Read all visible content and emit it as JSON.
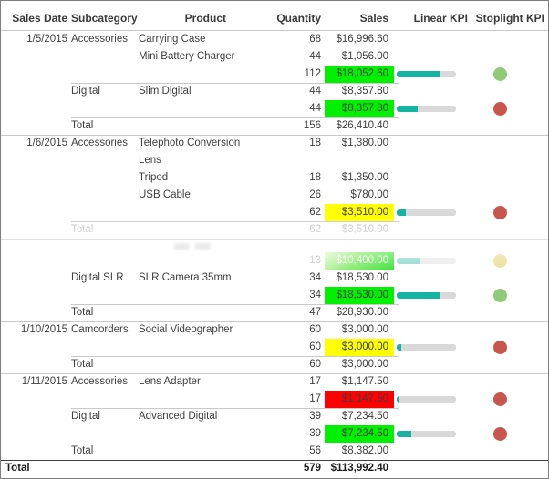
{
  "table": {
    "columns": [
      "Sales Date",
      "Subcategory",
      "Product",
      "Quantity",
      "Sales",
      "Linear KPI",
      "Stoplight KPI"
    ],
    "rows": [
      {
        "date": "1/5/2015",
        "subcategory": "Accessories",
        "product": "Carrying Case",
        "quantity": "68",
        "sales": "$16,996.60"
      },
      {
        "product": "Mini Battery Charger",
        "quantity": "44",
        "sales": "$1,056.00"
      },
      {
        "quantity": "112",
        "sales": "$18,052.60",
        "sales_bg": "lime",
        "bar": 0.72,
        "dot": "green"
      },
      {
        "subcategory": "Digital",
        "product": "Slim Digital",
        "quantity": "44",
        "sales": "$8,357.80",
        "top_line": "partial"
      },
      {
        "quantity": "44",
        "sales": "$8,357.80",
        "sales_bg": "lime",
        "bar": 0.35,
        "dot": "red"
      },
      {
        "subcategory": "Total",
        "quantity": "156",
        "sales": "$26,410.40",
        "top_line": "partial"
      },
      {
        "date": "1/6/2015",
        "subcategory": "Accessories",
        "product": "Telephoto Conversion",
        "product_line2": "Lens",
        "quantity": "18",
        "sales": "$1,380.00",
        "top_line": "full",
        "tall": true
      },
      {
        "product": "Tripod",
        "quantity": "18",
        "sales": "$1,350.00"
      },
      {
        "product": "USB Cable",
        "quantity": "26",
        "sales": "$780.00"
      },
      {
        "quantity": "62",
        "sales": "$3,510.00",
        "sales_bg": "yellow",
        "bar": 0.16,
        "dot": "red"
      },
      {
        "subcategory": "Total",
        "quantity": "62",
        "sales": "$3,510.00",
        "top_line": "partial",
        "muted": true
      },
      {
        "spacer": true,
        "top_line": "full"
      },
      {
        "quantity": "13",
        "sales": "$10,400.00",
        "sales_bg": "lime_faded",
        "bar": 0.4,
        "dot": "yellow",
        "faded": true
      },
      {
        "subcategory": "Digital SLR",
        "product": "SLR Camera 35mm",
        "quantity": "34",
        "sales": "$18,530.00",
        "top_line": "partial"
      },
      {
        "quantity": "34",
        "sales": "$18,530.00",
        "sales_bg": "lime",
        "bar": 0.73,
        "dot": "green"
      },
      {
        "subcategory": "Total",
        "quantity": "47",
        "sales": "$28,930.00",
        "top_line": "partial"
      },
      {
        "date": "1/10/2015",
        "subcategory": "Camcorders",
        "product": "Social Videographer",
        "quantity": "60",
        "sales": "$3,000.00",
        "top_line": "full"
      },
      {
        "quantity": "60",
        "sales": "$3,000.00",
        "sales_bg": "yellow",
        "bar": 0.07,
        "dot": "red"
      },
      {
        "subcategory": "Total",
        "quantity": "60",
        "sales": "$3,000.00",
        "top_line": "partial"
      },
      {
        "date": "1/11/2015",
        "subcategory": "Accessories",
        "product": "Lens Adapter",
        "quantity": "17",
        "sales": "$1,147.50",
        "top_line": "full"
      },
      {
        "quantity": "17",
        "sales": "$1,147.50",
        "sales_bg": "red",
        "bar": 0.035,
        "dot": "red"
      },
      {
        "subcategory": "Digital",
        "product": "Advanced Digital",
        "quantity": "39",
        "sales": "$7,234.50",
        "top_line": "partial"
      },
      {
        "quantity": "39",
        "sales": "$7,234.50",
        "sales_bg": "lime",
        "bar": 0.25,
        "dot": "red"
      },
      {
        "subcategory": "Total",
        "quantity": "56",
        "sales": "$8,382.00",
        "top_line": "partial"
      },
      {
        "grand": true,
        "label": "Total",
        "quantity": "579",
        "sales": "$113,992.40",
        "top_line": "grand"
      }
    ]
  },
  "colors": {
    "kpi_good_cell": "#00f000",
    "kpi_warn_cell": "#ffff00",
    "kpi_bad_cell": "#ff0000",
    "linear_kpi_fill": "#14b3a2",
    "linear_kpi_track": "#d9d9d9",
    "stoplight_green": "#90c978",
    "stoplight_red": "#c8564f",
    "stoplight_yellow": "#ecdf9b",
    "text": "#404040",
    "muted_text": "#b6b6b6"
  }
}
